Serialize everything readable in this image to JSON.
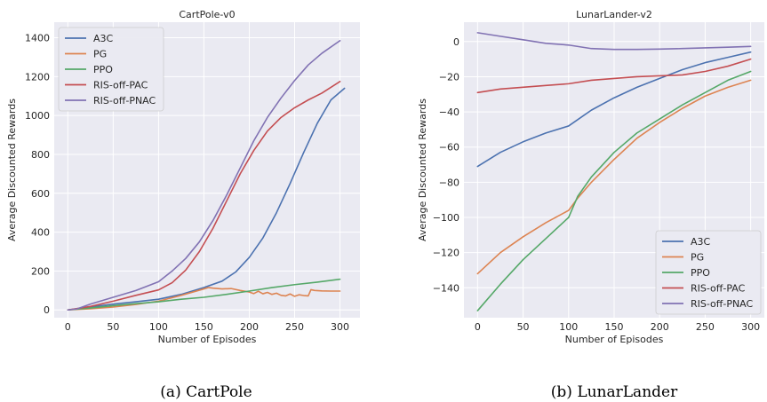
{
  "colors": {
    "A3C": "#4c72b0",
    "PG": "#dd8452",
    "PPO": "#55a868",
    "RIS-off-PAC": "#c44e52",
    "RIS-off-PNAC": "#8172b3"
  },
  "chart_data": [
    {
      "type": "line",
      "title": "CartPole-v0",
      "xlabel": "Number of Episodes",
      "ylabel": "Average Discounted Rewards",
      "caption": "(a)  CartPole",
      "xlim": [
        -15,
        322
      ],
      "ylim": [
        -40,
        1480
      ],
      "xticks": [
        0,
        50,
        100,
        150,
        200,
        250,
        300
      ],
      "yticks": [
        0,
        200,
        400,
        600,
        800,
        1000,
        1200,
        1400
      ],
      "grid": true,
      "legend_position": "top-left",
      "series": [
        {
          "name": "A3C",
          "x": [
            0,
            25,
            50,
            75,
            100,
            125,
            150,
            170,
            185,
            200,
            215,
            230,
            245,
            260,
            275,
            290,
            305
          ],
          "y": [
            0,
            15,
            30,
            42,
            55,
            80,
            115,
            148,
            195,
            270,
            370,
            500,
            650,
            810,
            960,
            1080,
            1140
          ]
        },
        {
          "name": "PG",
          "x": [
            0,
            25,
            50,
            75,
            100,
            125,
            150,
            155,
            160,
            170,
            180,
            190,
            200,
            205,
            210,
            215,
            220,
            225,
            230,
            235,
            240,
            245,
            250,
            255,
            260,
            265,
            268,
            272,
            280,
            290,
            300
          ],
          "y": [
            0,
            6,
            15,
            28,
            45,
            75,
            108,
            115,
            112,
            108,
            110,
            100,
            92,
            84,
            96,
            83,
            90,
            80,
            86,
            75,
            72,
            82,
            70,
            78,
            74,
            72,
            104,
            100,
            98,
            97,
            97
          ]
        },
        {
          "name": "PPO",
          "x": [
            0,
            25,
            50,
            75,
            100,
            125,
            150,
            175,
            200,
            225,
            250,
            275,
            300
          ],
          "y": [
            0,
            10,
            22,
            32,
            42,
            55,
            65,
            80,
            97,
            115,
            130,
            143,
            158
          ]
        },
        {
          "name": "RIS-off-PAC",
          "x": [
            0,
            25,
            50,
            75,
            100,
            115,
            130,
            145,
            160,
            175,
            190,
            205,
            220,
            235,
            250,
            265,
            280,
            300
          ],
          "y": [
            0,
            18,
            45,
            75,
            103,
            140,
            205,
            300,
            420,
            560,
            700,
            820,
            920,
            990,
            1040,
            1080,
            1115,
            1175
          ]
        },
        {
          "name": "RIS-off-PNAC",
          "x": [
            0,
            10,
            25,
            50,
            75,
            100,
            115,
            130,
            145,
            160,
            175,
            190,
            205,
            220,
            235,
            250,
            265,
            280,
            300
          ],
          "y": [
            0,
            5,
            30,
            65,
            100,
            145,
            200,
            265,
            350,
            460,
            590,
            730,
            870,
            990,
            1090,
            1180,
            1260,
            1320,
            1385
          ]
        }
      ]
    },
    {
      "type": "line",
      "title": "LunarLander-v2",
      "xlabel": "Number of Episodes",
      "ylabel": "Average Discounted Rewards",
      "caption": "(b)  LunarLander",
      "xlim": [
        -15,
        315
      ],
      "ylim": [
        -157,
        11
      ],
      "xticks": [
        0,
        50,
        100,
        150,
        200,
        250,
        300
      ],
      "yticks": [
        0,
        -20,
        -40,
        -60,
        -80,
        -100,
        -120,
        -140
      ],
      "grid": true,
      "legend_position": "bottom-right",
      "series": [
        {
          "name": "A3C",
          "x": [
            0,
            25,
            50,
            75,
            100,
            125,
            150,
            175,
            200,
            225,
            250,
            275,
            300
          ],
          "y": [
            -71,
            -63,
            -57,
            -52,
            -48,
            -39,
            -32,
            -26,
            -21,
            -16,
            -12,
            -9,
            -6
          ]
        },
        {
          "name": "PG",
          "x": [
            0,
            25,
            50,
            75,
            100,
            110,
            125,
            150,
            175,
            200,
            225,
            250,
            275,
            300
          ],
          "y": [
            -132,
            -120,
            -111,
            -103,
            -96,
            -89,
            -80,
            -67,
            -55,
            -46,
            -38,
            -31,
            -26,
            -22
          ]
        },
        {
          "name": "PPO",
          "x": [
            0,
            25,
            50,
            75,
            100,
            110,
            125,
            150,
            175,
            200,
            225,
            250,
            275,
            300
          ],
          "y": [
            -153,
            -138,
            -124,
            -112,
            -100,
            -88,
            -77,
            -63,
            -52,
            -44,
            -36,
            -29,
            -22,
            -17
          ]
        },
        {
          "name": "RIS-off-PAC",
          "x": [
            0,
            25,
            50,
            75,
            100,
            125,
            150,
            175,
            200,
            225,
            250,
            275,
            300
          ],
          "y": [
            -29,
            -27,
            -26,
            -25,
            -24,
            -22,
            -21,
            -20,
            -19.5,
            -19,
            -17,
            -14,
            -10
          ]
        },
        {
          "name": "RIS-off-PNAC",
          "x": [
            0,
            25,
            50,
            75,
            100,
            125,
            150,
            175,
            200,
            225,
            250,
            275,
            300
          ],
          "y": [
            5,
            3,
            1,
            -1,
            -2,
            -4,
            -4.5,
            -4.5,
            -4.3,
            -4,
            -3.6,
            -3.2,
            -2.8
          ]
        }
      ]
    }
  ]
}
